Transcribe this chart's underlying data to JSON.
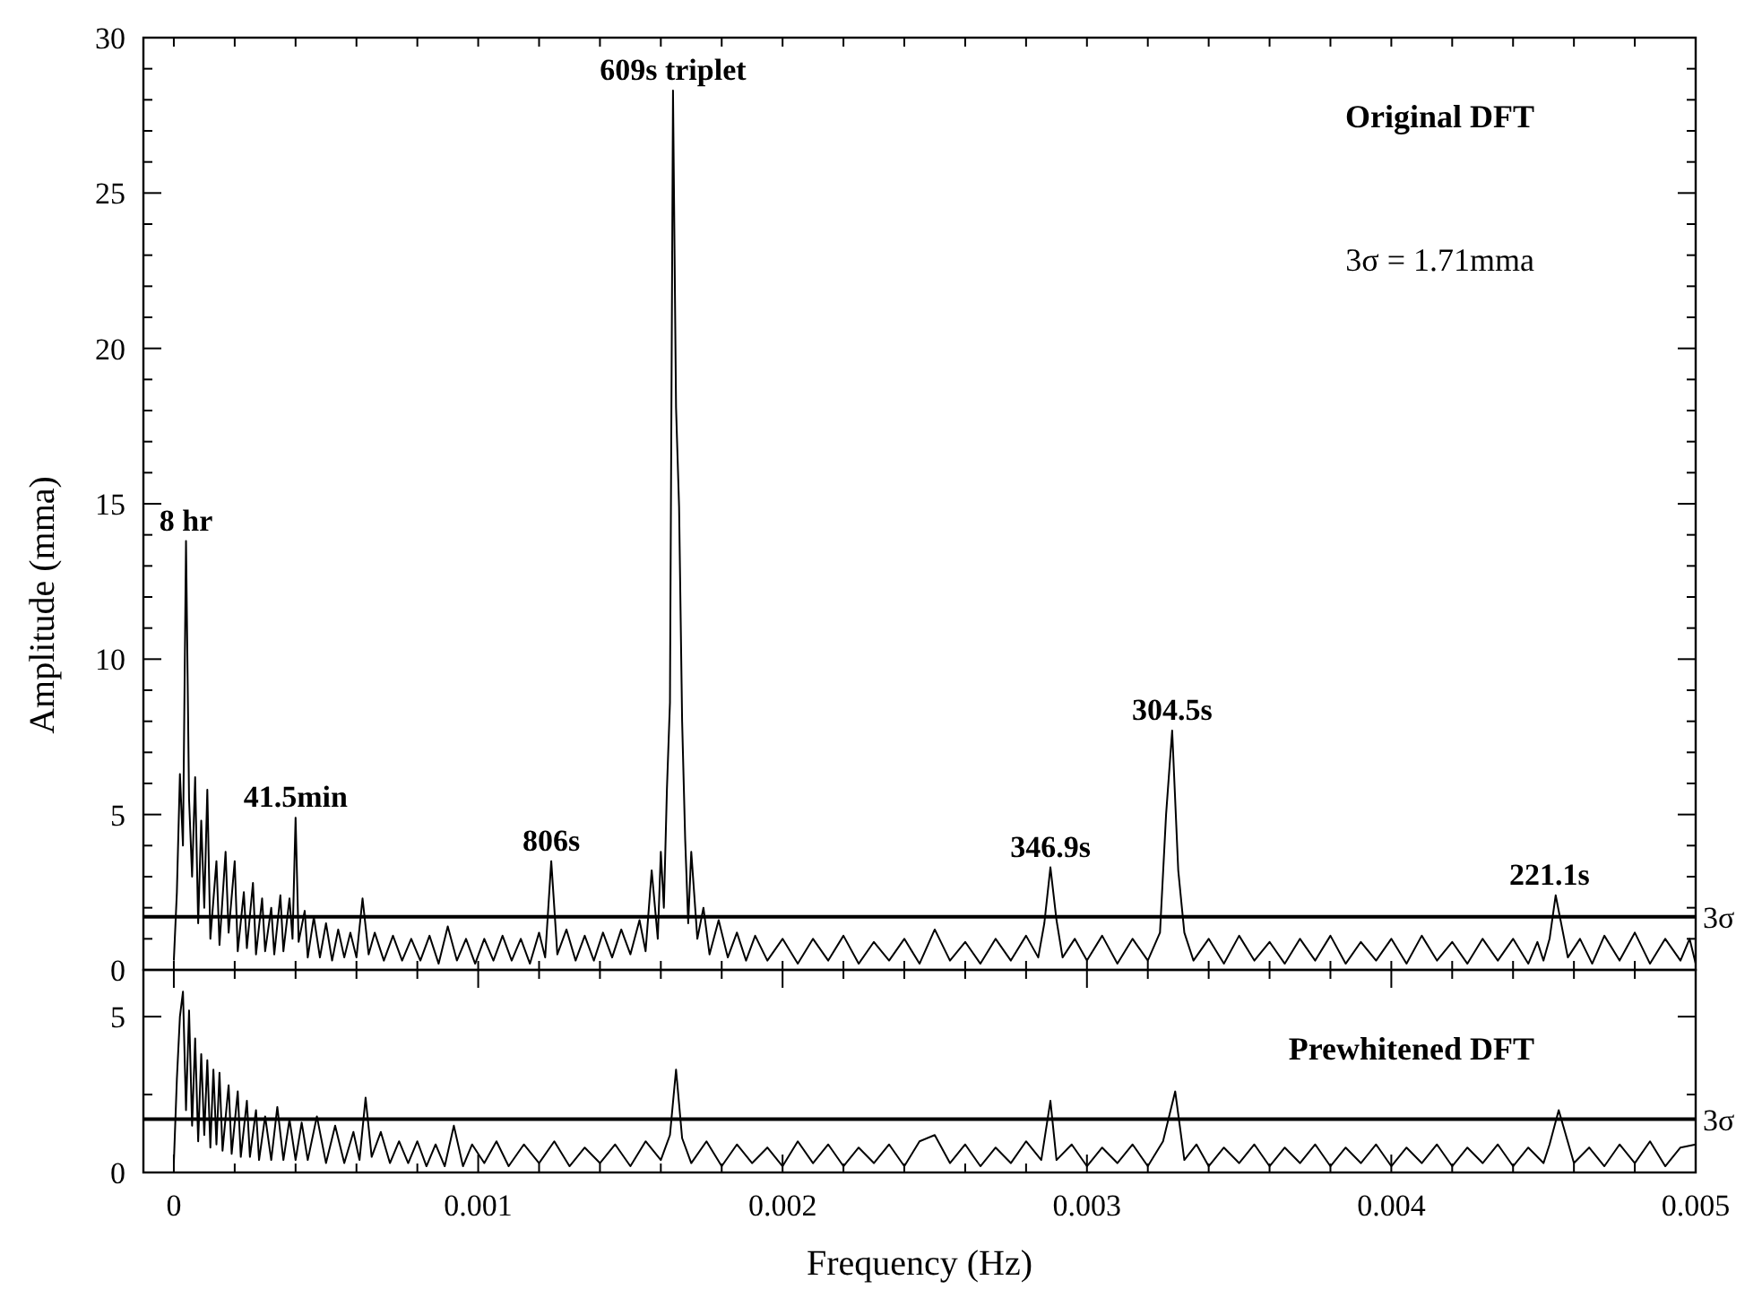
{
  "chart_data": [
    {
      "type": "line",
      "ylabel": "Amplitude (mma)",
      "xlim": [
        -0.0001,
        0.005
      ],
      "ylim": [
        0,
        30
      ],
      "xticks": [
        {
          "value": 0,
          "label": null
        },
        {
          "value": 0.0002,
          "label": null
        },
        {
          "value": 0.0004,
          "label": null
        },
        {
          "value": 0.0006,
          "label": null
        },
        {
          "value": 0.0008,
          "label": null
        },
        {
          "value": 0.001,
          "label": null
        },
        {
          "value": 0.0012,
          "label": null
        },
        {
          "value": 0.0014,
          "label": null
        },
        {
          "value": 0.0016,
          "label": null
        },
        {
          "value": 0.0018,
          "label": null
        },
        {
          "value": 0.002,
          "label": null
        },
        {
          "value": 0.0022,
          "label": null
        },
        {
          "value": 0.0024,
          "label": null
        },
        {
          "value": 0.0026,
          "label": null
        },
        {
          "value": 0.0028,
          "label": null
        },
        {
          "value": 0.003,
          "label": null
        },
        {
          "value": 0.0032,
          "label": null
        },
        {
          "value": 0.0034,
          "label": null
        },
        {
          "value": 0.0036,
          "label": null
        },
        {
          "value": 0.0038,
          "label": null
        },
        {
          "value": 0.004,
          "label": null
        },
        {
          "value": 0.0042,
          "label": null
        },
        {
          "value": 0.0044,
          "label": null
        },
        {
          "value": 0.0046,
          "label": null
        },
        {
          "value": 0.0048,
          "label": null
        },
        {
          "value": 0.005,
          "label": null
        }
      ],
      "yticks": [
        0,
        {
          "value": 1,
          "label": null
        },
        {
          "value": 2,
          "label": null
        },
        {
          "value": 3,
          "label": null
        },
        {
          "value": 4,
          "label": null
        },
        5,
        {
          "value": 6,
          "label": null
        },
        {
          "value": 7,
          "label": null
        },
        {
          "value": 8,
          "label": null
        },
        {
          "value": 9,
          "label": null
        },
        10,
        {
          "value": 11,
          "label": null
        },
        {
          "value": 12,
          "label": null
        },
        {
          "value": 13,
          "label": null
        },
        {
          "value": 14,
          "label": null
        },
        15,
        {
          "value": 16,
          "label": null
        },
        {
          "value": 17,
          "label": null
        },
        {
          "value": 18,
          "label": null
        },
        {
          "value": 19,
          "label": null
        },
        20,
        {
          "value": 21,
          "label": null
        },
        {
          "value": 22,
          "label": null
        },
        {
          "value": 23,
          "label": null
        },
        {
          "value": 24,
          "label": null
        },
        25,
        {
          "value": 26,
          "label": null
        },
        {
          "value": 27,
          "label": null
        },
        {
          "value": 28,
          "label": null
        },
        {
          "value": 29,
          "label": null
        },
        30
      ],
      "tick_labels": "y",
      "grid": false,
      "marker": "none",
      "line_style": "solid",
      "ref_lines": [
        {
          "axis": "y",
          "value": 1.71,
          "label": "3σ",
          "color": "#000000"
        }
      ],
      "annotations": [
        "Original DFT",
        "3σ = 1.71mma",
        {
          "text": "8 hr",
          "x": 4e-05,
          "y": 13.8
        },
        {
          "text": "41.5min",
          "x": 0.0004,
          "y": 4.9
        },
        {
          "text": "806s",
          "x": 0.00124,
          "y": 3.5
        },
        {
          "text": "609s triplet",
          "x": 0.00164,
          "y": 28.3
        },
        {
          "text": "346.9s",
          "x": 0.00288,
          "y": 3.3
        },
        {
          "text": "304.5s",
          "x": 0.00328,
          "y": 7.7
        },
        {
          "text": "221.1s",
          "x": 0.00452,
          "y": 2.4
        }
      ],
      "series": [
        {
          "color": "#000000",
          "x": [
            0,
            1e-05,
            2e-05,
            3e-05,
            4e-05,
            5e-05,
            6e-05,
            7e-05,
            8e-05,
            9e-05,
            0.0001,
            0.00011,
            0.00012,
            0.00014,
            0.00015,
            0.00017,
            0.00018,
            0.0002,
            0.00021,
            0.00023,
            0.00024,
            0.00026,
            0.00027,
            0.00029,
            0.0003,
            0.00032,
            0.00033,
            0.00035,
            0.00036,
            0.00038,
            0.00039,
            0.0004,
            0.00041,
            0.00043,
            0.00044,
            0.00046,
            0.00048,
            0.0005,
            0.00052,
            0.00054,
            0.00056,
            0.00058,
            0.0006,
            0.00062,
            0.00064,
            0.00066,
            0.00069,
            0.00072,
            0.00075,
            0.00078,
            0.00081,
            0.00084,
            0.00087,
            0.0009,
            0.00093,
            0.00096,
            0.00099,
            0.00102,
            0.00105,
            0.00108,
            0.00111,
            0.00114,
            0.00117,
            0.0012,
            0.00122,
            0.00124,
            0.00126,
            0.00129,
            0.00132,
            0.00135,
            0.00138,
            0.00141,
            0.00144,
            0.00147,
            0.0015,
            0.00153,
            0.00155,
            0.00157,
            0.00159,
            0.0016,
            0.00161,
            0.00162,
            0.00163,
            0.00164,
            0.00165,
            0.00166,
            0.00167,
            0.00168,
            0.00169,
            0.0017,
            0.00172,
            0.00174,
            0.00176,
            0.00179,
            0.00182,
            0.00185,
            0.00188,
            0.00191,
            0.00195,
            0.002,
            0.00205,
            0.0021,
            0.00215,
            0.0022,
            0.00225,
            0.0023,
            0.00235,
            0.0024,
            0.00245,
            0.0025,
            0.00255,
            0.0026,
            0.00265,
            0.0027,
            0.00275,
            0.0028,
            0.00284,
            0.00286,
            0.00288,
            0.0029,
            0.00292,
            0.00296,
            0.003,
            0.00305,
            0.0031,
            0.00315,
            0.0032,
            0.00324,
            0.00326,
            0.00328,
            0.0033,
            0.00332,
            0.00335,
            0.0034,
            0.00345,
            0.0035,
            0.00355,
            0.0036,
            0.00365,
            0.0037,
            0.00375,
            0.0038,
            0.00385,
            0.0039,
            0.00395,
            0.004,
            0.00405,
            0.0041,
            0.00415,
            0.0042,
            0.00425,
            0.0043,
            0.00435,
            0.0044,
            0.00445,
            0.00448,
            0.0045,
            0.00452,
            0.00454,
            0.00458,
            0.00462,
            0.00466,
            0.0047,
            0.00475,
            0.0048,
            0.00485,
            0.0049,
            0.00495,
            0.00498,
            0.005
          ],
          "values": [
            0.3,
            2.5,
            6.3,
            4.0,
            13.8,
            5.5,
            3.0,
            6.2,
            1.5,
            4.8,
            2.0,
            5.8,
            1.0,
            3.5,
            0.8,
            3.8,
            1.2,
            3.5,
            0.6,
            2.5,
            0.7,
            2.8,
            0.5,
            2.3,
            0.6,
            2.0,
            0.5,
            2.4,
            0.6,
            2.3,
            1.0,
            4.9,
            0.9,
            1.9,
            0.4,
            1.7,
            0.4,
            1.5,
            0.3,
            1.3,
            0.4,
            1.2,
            0.4,
            2.3,
            0.5,
            1.2,
            0.3,
            1.1,
            0.3,
            1.0,
            0.3,
            1.1,
            0.2,
            1.4,
            0.3,
            1.0,
            0.2,
            1.0,
            0.3,
            1.1,
            0.3,
            1.0,
            0.2,
            1.2,
            0.4,
            3.5,
            0.5,
            1.3,
            0.3,
            1.1,
            0.3,
            1.2,
            0.4,
            1.3,
            0.5,
            1.6,
            0.6,
            3.2,
            1.0,
            3.8,
            2.0,
            5.8,
            8.6,
            28.3,
            18.1,
            14.9,
            8.0,
            4.2,
            1.5,
            3.8,
            1.0,
            2.0,
            0.5,
            1.6,
            0.4,
            1.2,
            0.3,
            1.1,
            0.3,
            1.0,
            0.2,
            1.0,
            0.3,
            1.1,
            0.2,
            0.9,
            0.3,
            1.0,
            0.2,
            1.3,
            0.3,
            0.9,
            0.2,
            1.0,
            0.3,
            1.1,
            0.4,
            1.5,
            3.3,
            1.6,
            0.4,
            1.0,
            0.3,
            1.1,
            0.2,
            1.0,
            0.3,
            1.2,
            5.0,
            7.7,
            3.2,
            1.2,
            0.3,
            1.0,
            0.2,
            1.1,
            0.3,
            0.9,
            0.2,
            1.0,
            0.3,
            1.1,
            0.2,
            0.9,
            0.3,
            1.0,
            0.2,
            1.1,
            0.3,
            0.9,
            0.2,
            1.0,
            0.3,
            1.0,
            0.2,
            0.9,
            0.3,
            1.0,
            2.4,
            0.4,
            1.0,
            0.2,
            1.1,
            0.3,
            1.2,
            0.2,
            1.0,
            0.3,
            1.0,
            0.2
          ]
        }
      ]
    },
    {
      "type": "line",
      "xlabel": "Frequency (Hz)",
      "xlim": [
        -0.0001,
        0.005
      ],
      "ylim": [
        0,
        6.5
      ],
      "xticks": [
        0,
        {
          "value": 0.0002,
          "label": null
        },
        {
          "value": 0.0004,
          "label": null
        },
        {
          "value": 0.0006,
          "label": null
        },
        {
          "value": 0.0008,
          "label": null
        },
        0.001,
        {
          "value": 0.0012,
          "label": null
        },
        {
          "value": 0.0014,
          "label": null
        },
        {
          "value": 0.0016,
          "label": null
        },
        {
          "value": 0.0018,
          "label": null
        },
        0.002,
        {
          "value": 0.0022,
          "label": null
        },
        {
          "value": 0.0024,
          "label": null
        },
        {
          "value": 0.0026,
          "label": null
        },
        {
          "value": 0.0028,
          "label": null
        },
        0.003,
        {
          "value": 0.0032,
          "label": null
        },
        {
          "value": 0.0034,
          "label": null
        },
        {
          "value": 0.0036,
          "label": null
        },
        {
          "value": 0.0038,
          "label": null
        },
        0.004,
        {
          "value": 0.0042,
          "label": null
        },
        {
          "value": 0.0044,
          "label": null
        },
        {
          "value": 0.0046,
          "label": null
        },
        {
          "value": 0.0048,
          "label": null
        },
        0.005
      ],
      "yticks": [
        0,
        {
          "value": 2.5,
          "label": null
        },
        5
      ],
      "grid": false,
      "marker": "none",
      "line_style": "solid",
      "ref_lines": [
        {
          "axis": "y",
          "value": 1.71,
          "label": "3σ",
          "color": "#000000"
        }
      ],
      "annotations": [
        "Prewhitened DFT"
      ],
      "series": [
        {
          "color": "#000000",
          "x": [
            0,
            1e-05,
            2e-05,
            3e-05,
            4e-05,
            5e-05,
            6e-05,
            7e-05,
            8e-05,
            9e-05,
            0.0001,
            0.00011,
            0.00012,
            0.00013,
            0.00014,
            0.00015,
            0.00016,
            0.00018,
            0.00019,
            0.00021,
            0.00022,
            0.00024,
            0.00025,
            0.00027,
            0.00028,
            0.0003,
            0.00032,
            0.00034,
            0.00036,
            0.00038,
            0.0004,
            0.00042,
            0.00044,
            0.00047,
            0.0005,
            0.00053,
            0.00056,
            0.00059,
            0.00061,
            0.00063,
            0.00065,
            0.00068,
            0.00071,
            0.00074,
            0.00077,
            0.0008,
            0.00083,
            0.00086,
            0.00089,
            0.00092,
            0.00095,
            0.00098,
            0.00102,
            0.00106,
            0.0011,
            0.00115,
            0.0012,
            0.00125,
            0.0013,
            0.00135,
            0.0014,
            0.00145,
            0.0015,
            0.00155,
            0.0016,
            0.00163,
            0.00165,
            0.00167,
            0.0017,
            0.00175,
            0.0018,
            0.00185,
            0.0019,
            0.00195,
            0.002,
            0.00205,
            0.0021,
            0.00215,
            0.0022,
            0.00225,
            0.0023,
            0.00235,
            0.0024,
            0.00245,
            0.0025,
            0.00255,
            0.0026,
            0.00265,
            0.0027,
            0.00275,
            0.0028,
            0.00285,
            0.00288,
            0.0029,
            0.00295,
            0.003,
            0.00305,
            0.0031,
            0.00315,
            0.0032,
            0.00325,
            0.00329,
            0.00332,
            0.00336,
            0.0034,
            0.00345,
            0.0035,
            0.00355,
            0.0036,
            0.00365,
            0.0037,
            0.00375,
            0.0038,
            0.00385,
            0.0039,
            0.00395,
            0.004,
            0.00405,
            0.0041,
            0.00415,
            0.0042,
            0.00425,
            0.0043,
            0.00435,
            0.0044,
            0.00445,
            0.0045,
            0.00452,
            0.00455,
            0.0046,
            0.00465,
            0.0047,
            0.00475,
            0.0048,
            0.00485,
            0.0049,
            0.00495,
            0.005
          ],
          "values": [
            0.3,
            3.0,
            5.0,
            5.8,
            2.0,
            5.2,
            1.5,
            4.3,
            1.0,
            3.8,
            1.2,
            3.6,
            0.8,
            3.3,
            0.9,
            3.2,
            0.7,
            2.8,
            0.6,
            2.6,
            0.5,
            2.3,
            0.5,
            2.0,
            0.4,
            1.8,
            0.4,
            2.1,
            0.4,
            1.7,
            0.4,
            1.6,
            0.4,
            1.8,
            0.3,
            1.5,
            0.3,
            1.3,
            0.4,
            2.4,
            0.5,
            1.3,
            0.3,
            1.0,
            0.3,
            1.0,
            0.2,
            0.9,
            0.2,
            1.5,
            0.2,
            0.9,
            0.3,
            1.0,
            0.2,
            0.9,
            0.3,
            1.0,
            0.2,
            0.8,
            0.3,
            0.9,
            0.2,
            1.0,
            0.4,
            1.2,
            3.3,
            1.1,
            0.3,
            1.0,
            0.2,
            0.9,
            0.3,
            0.8,
            0.2,
            1.0,
            0.3,
            0.9,
            0.2,
            0.8,
            0.3,
            0.9,
            0.2,
            1.0,
            1.2,
            0.3,
            0.9,
            0.2,
            0.8,
            0.3,
            1.0,
            0.4,
            2.3,
            0.4,
            0.9,
            0.2,
            0.8,
            0.3,
            0.9,
            0.2,
            1.0,
            2.6,
            0.4,
            0.9,
            0.2,
            0.8,
            0.3,
            0.9,
            0.2,
            0.8,
            0.3,
            0.9,
            0.2,
            0.8,
            0.3,
            0.9,
            0.2,
            0.8,
            0.3,
            0.9,
            0.2,
            0.8,
            0.3,
            0.9,
            0.2,
            0.8,
            0.3,
            0.9,
            2.0,
            0.3,
            0.8,
            0.2,
            0.9,
            0.3,
            1.0,
            0.2,
            0.8,
            0.9
          ]
        }
      ]
    }
  ]
}
